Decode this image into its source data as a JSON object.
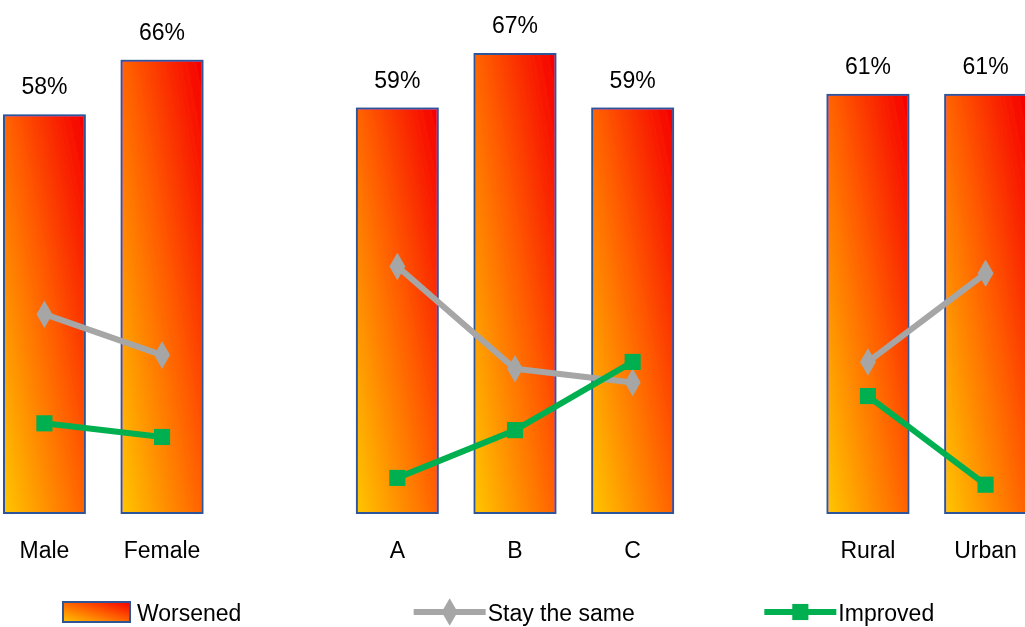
{
  "chart_data": {
    "type": "bar",
    "categories": [
      "Male",
      "Female",
      null,
      "A",
      "B",
      "C",
      null,
      "Rural",
      "Urban"
    ],
    "series": [
      {
        "name": "Worsened",
        "color": "#ff5a00",
        "values": [
          58,
          66,
          null,
          59,
          67,
          59,
          null,
          61,
          61
        ],
        "value_labels": [
          "58%",
          "66%",
          null,
          "59%",
          "67%",
          "59%",
          null,
          "61%",
          "61%"
        ]
      },
      {
        "name": "Stay the same",
        "type": "line",
        "color": "#a6a6a6",
        "marker": "diamond",
        "values": [
          29,
          23,
          null,
          36,
          21,
          19,
          null,
          22,
          35
        ]
      },
      {
        "name": "Improved",
        "type": "line",
        "color": "#00b050",
        "marker": "square",
        "values": [
          13,
          11,
          null,
          5,
          12,
          22,
          null,
          17,
          4
        ]
      }
    ],
    "legend": "bottom"
  }
}
